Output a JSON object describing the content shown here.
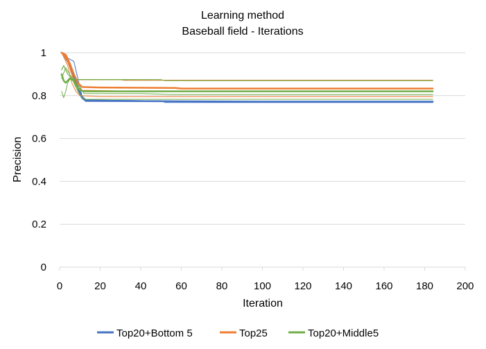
{
  "chart_data": {
    "type": "line",
    "title": "Learning method",
    "subtitle": "Baseball field - Iterations",
    "xlabel": "Iteration",
    "ylabel": "Precision",
    "xlim": [
      0,
      200
    ],
    "ylim": [
      0,
      1
    ],
    "xticks": [
      "0",
      "20",
      "40",
      "60",
      "80",
      "100",
      "120",
      "140",
      "160",
      "180",
      "200"
    ],
    "yticks": [
      "0",
      "0.2",
      "0.4",
      "0.6",
      "0.8",
      "1"
    ],
    "grid": "horizontal",
    "legend_position": "bottom",
    "legend": [
      {
        "label": "Top20+Bottom 5",
        "color": "#4472C4"
      },
      {
        "label": "Top25",
        "color": "#ED7D31"
      },
      {
        "label": "Top20+Middle5",
        "color": "#70AD47"
      }
    ],
    "series": [
      {
        "group": 0,
        "color": "#4472C4",
        "width": 2.5,
        "points": [
          [
            1,
            1
          ],
          [
            3,
            0.99
          ],
          [
            5,
            0.95
          ],
          [
            7,
            0.9
          ],
          [
            9,
            0.84
          ],
          [
            11,
            0.79
          ],
          [
            13,
            0.775
          ],
          [
            40,
            0.774
          ],
          [
            100,
            0.772
          ],
          [
            184,
            0.772
          ]
        ]
      },
      {
        "group": 0,
        "color": "#4472C4",
        "width": 1,
        "points": [
          [
            1,
            1
          ],
          [
            3,
            0.98
          ],
          [
            5,
            0.97
          ],
          [
            7,
            0.96
          ],
          [
            9,
            0.88
          ],
          [
            11,
            0.8
          ],
          [
            13,
            0.78
          ],
          [
            30,
            0.778
          ],
          [
            56,
            0.775
          ],
          [
            58,
            0.773
          ],
          [
            184,
            0.773
          ]
        ]
      },
      {
        "group": 0,
        "color": "#4472C4",
        "width": 1,
        "points": [
          [
            1,
            1
          ],
          [
            4,
            0.96
          ],
          [
            6,
            0.92
          ],
          [
            8,
            0.86
          ],
          [
            10,
            0.8
          ],
          [
            12,
            0.78
          ],
          [
            50,
            0.776
          ],
          [
            52,
            0.768
          ],
          [
            184,
            0.768
          ]
        ]
      },
      {
        "group": 0,
        "color": "#4472C4",
        "width": 1,
        "points": [
          [
            1,
            1
          ],
          [
            5,
            0.94
          ],
          [
            8,
            0.85
          ],
          [
            11,
            0.79
          ],
          [
            13,
            0.778
          ],
          [
            100,
            0.77
          ],
          [
            184,
            0.77
          ]
        ]
      },
      {
        "group": 1,
        "color": "#ED7D31",
        "width": 2.5,
        "points": [
          [
            1,
            1
          ],
          [
            3,
            0.99
          ],
          [
            5,
            0.95
          ],
          [
            7,
            0.9
          ],
          [
            9,
            0.86
          ],
          [
            11,
            0.84
          ],
          [
            20,
            0.838
          ],
          [
            57,
            0.836
          ],
          [
            60,
            0.833
          ],
          [
            184,
            0.833
          ]
        ]
      },
      {
        "group": 1,
        "color": "#ED7D31",
        "width": 1.2,
        "points": [
          [
            1,
            1
          ],
          [
            4,
            0.96
          ],
          [
            6,
            0.9
          ],
          [
            7,
            0.874
          ],
          [
            30,
            0.874
          ],
          [
            32,
            0.872
          ],
          [
            184,
            0.872
          ]
        ]
      },
      {
        "group": 1,
        "color": "#ED7D31",
        "width": 1,
        "points": [
          [
            1,
            1
          ],
          [
            4,
            0.94
          ],
          [
            6,
            0.86
          ],
          [
            8,
            0.82
          ],
          [
            10,
            0.8
          ],
          [
            20,
            0.795
          ],
          [
            184,
            0.795
          ]
        ]
      },
      {
        "group": 1,
        "color": "#ED7D31",
        "width": 1,
        "points": [
          [
            1,
            1
          ],
          [
            3,
            0.98
          ],
          [
            5,
            0.93
          ],
          [
            7,
            0.88
          ],
          [
            9,
            0.84
          ],
          [
            11,
            0.825
          ],
          [
            30,
            0.822
          ],
          [
            184,
            0.822
          ]
        ]
      },
      {
        "group": 2,
        "color": "#70AD47",
        "width": 2.5,
        "points": [
          [
            1,
            0.9
          ],
          [
            2,
            0.87
          ],
          [
            3,
            0.86
          ],
          [
            5,
            0.88
          ],
          [
            7,
            0.87
          ],
          [
            8,
            0.85
          ],
          [
            10,
            0.825
          ],
          [
            12,
            0.82
          ],
          [
            184,
            0.82
          ]
        ]
      },
      {
        "group": 2,
        "color": "#70AD47",
        "width": 1.2,
        "points": [
          [
            1,
            0.92
          ],
          [
            2,
            0.94
          ],
          [
            4,
            0.9
          ],
          [
            6,
            0.88
          ],
          [
            7,
            0.875
          ],
          [
            50,
            0.874
          ],
          [
            52,
            0.87
          ],
          [
            184,
            0.87
          ]
        ]
      },
      {
        "group": 2,
        "color": "#70AD47",
        "width": 1,
        "points": [
          [
            1,
            0.82
          ],
          [
            2,
            0.79
          ],
          [
            3,
            0.82
          ],
          [
            4,
            0.86
          ],
          [
            6,
            0.89
          ],
          [
            8,
            0.86
          ],
          [
            10,
            0.84
          ],
          [
            12,
            0.81
          ],
          [
            40,
            0.81
          ],
          [
            55,
            0.805
          ],
          [
            184,
            0.805
          ]
        ]
      },
      {
        "group": 2,
        "color": "#70AD47",
        "width": 1,
        "points": [
          [
            1,
            0.88
          ],
          [
            3,
            0.93
          ],
          [
            5,
            0.9
          ],
          [
            7,
            0.86
          ],
          [
            9,
            0.82
          ],
          [
            11,
            0.79
          ],
          [
            13,
            0.783
          ],
          [
            184,
            0.783
          ]
        ]
      }
    ]
  }
}
